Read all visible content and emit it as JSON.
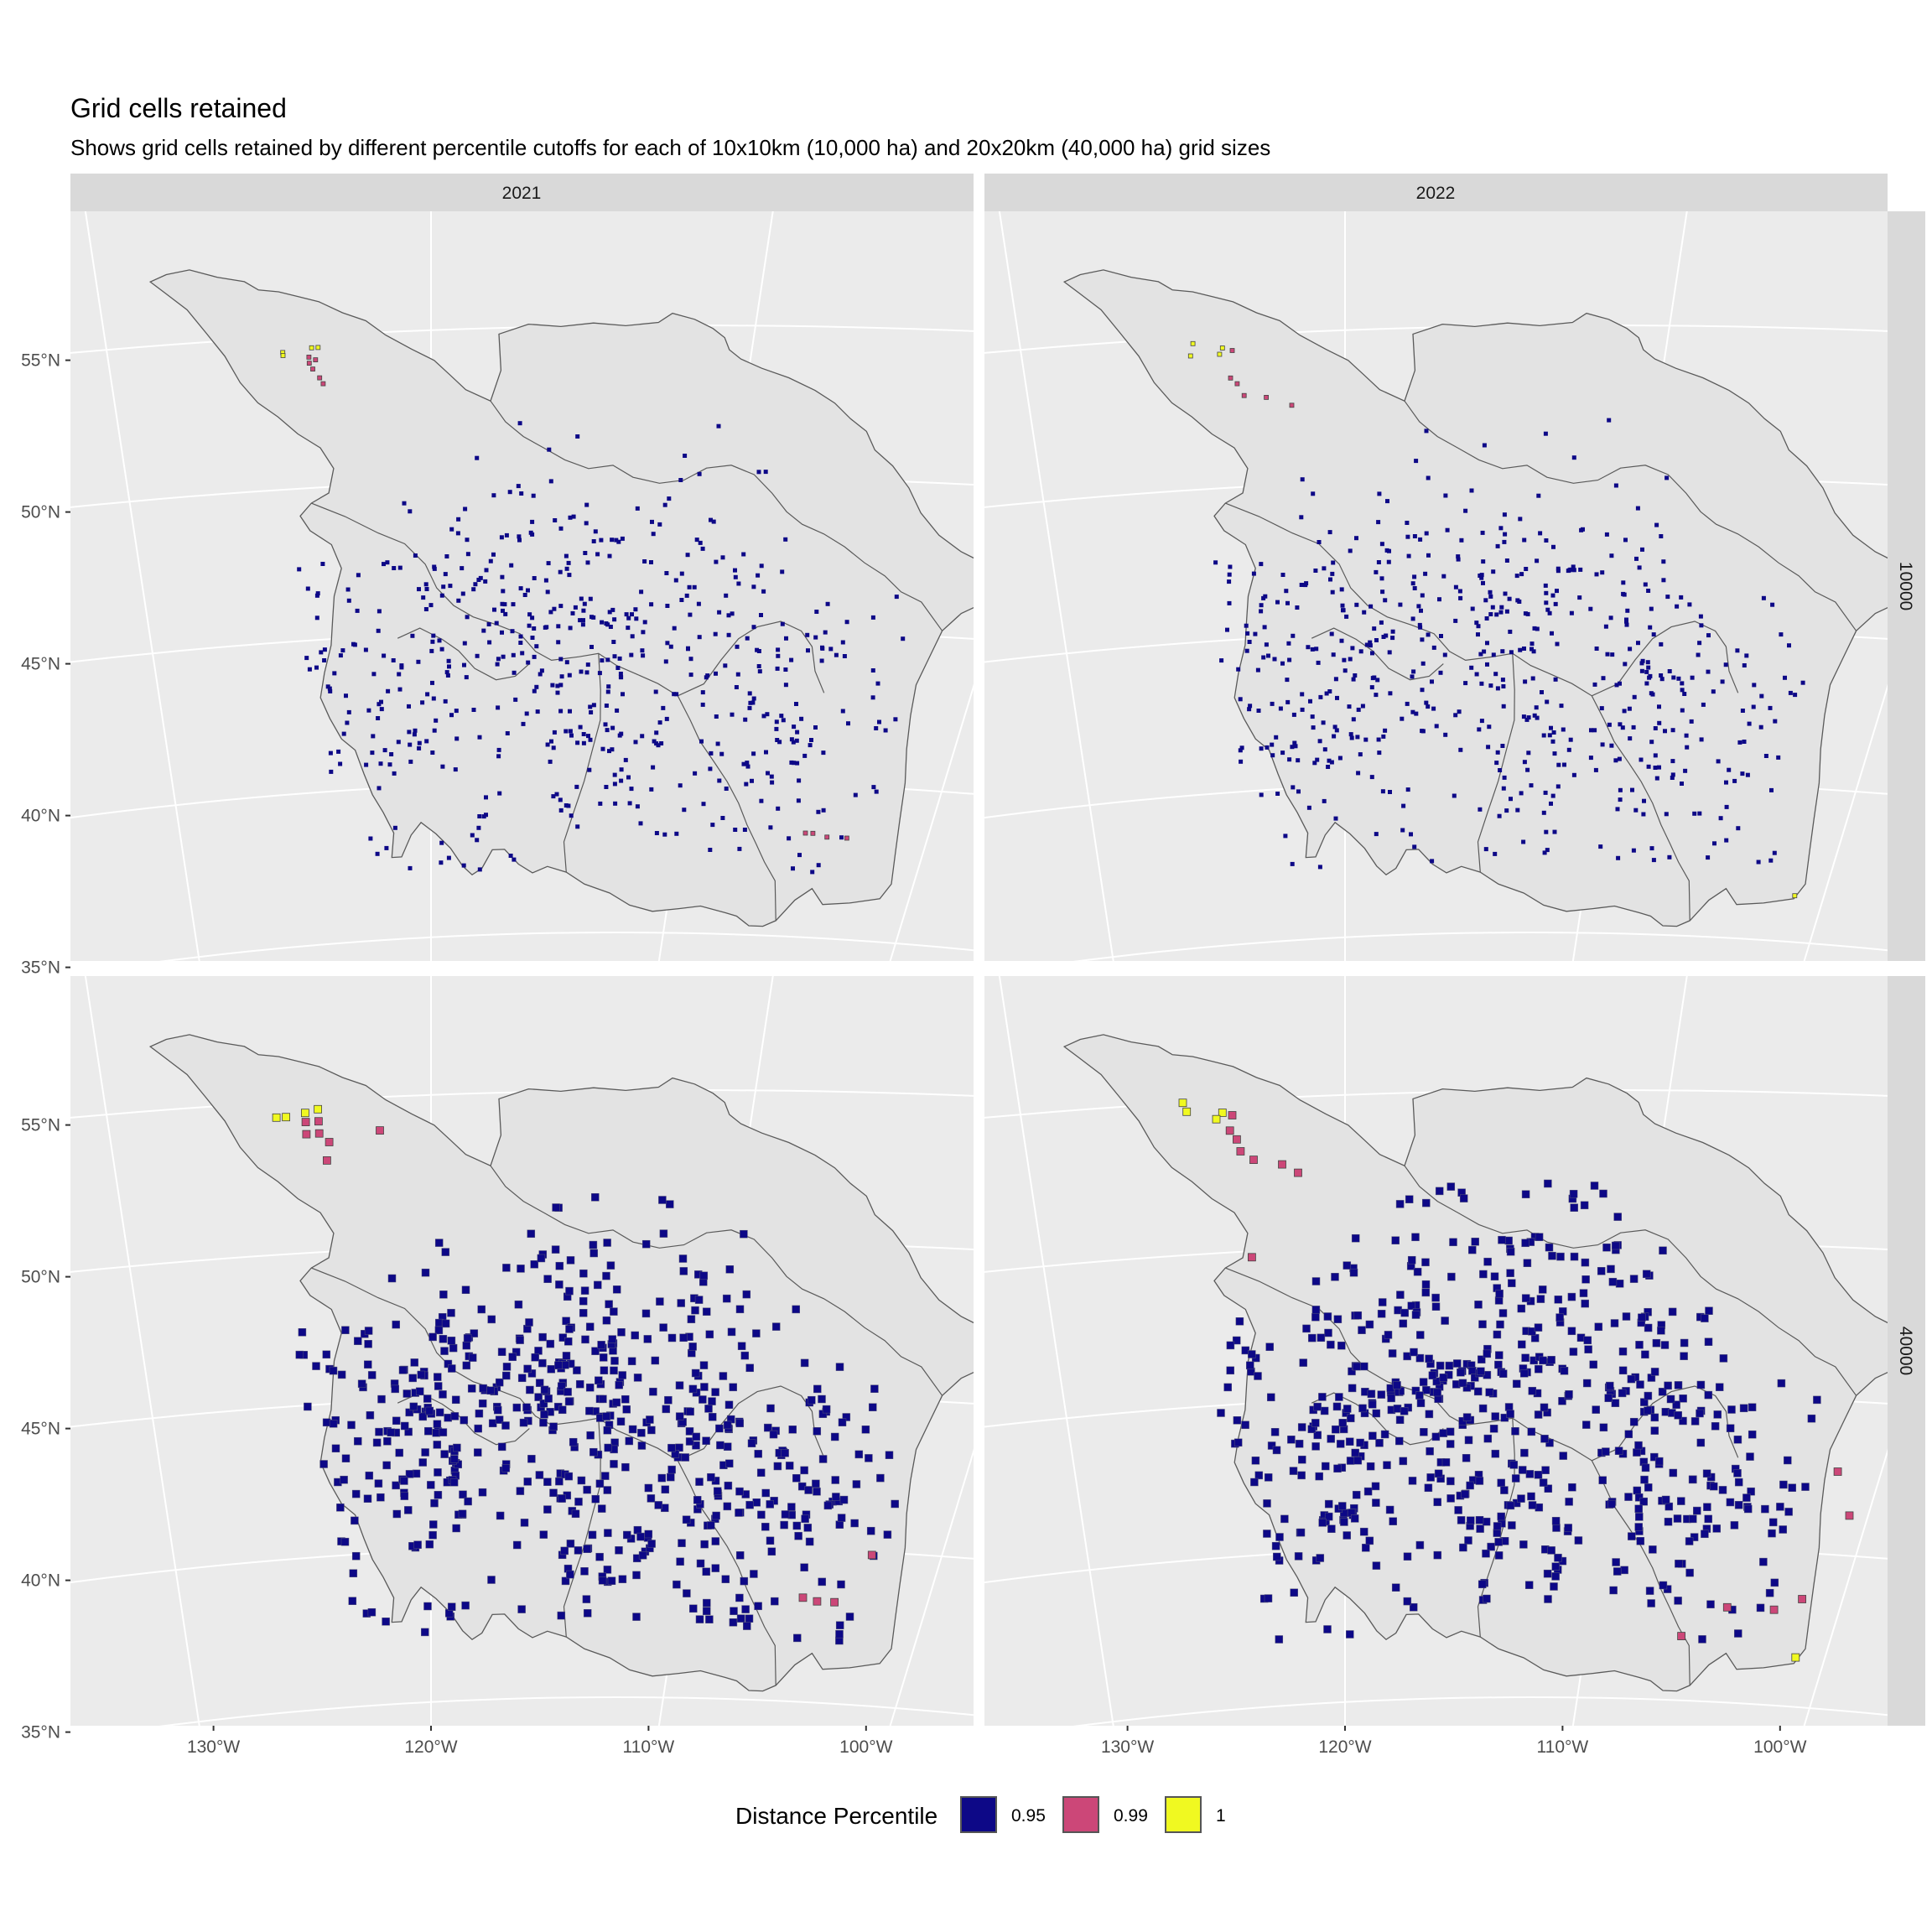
{
  "title": "Grid cells retained",
  "subtitle": "Shows grid cells retained by different percentile cutoffs for each of 10x10km (10,000 ha) and 20x20km (40,000 ha) grid sizes",
  "chart_data": {
    "type": "map",
    "columns": [
      "2021",
      "2022"
    ],
    "rows": [
      "10000",
      "40000"
    ],
    "lat_ticks": [
      "55°N",
      "50°N",
      "45°N",
      "40°N",
      "35°N"
    ],
    "lon_ticks": [
      "130°W",
      "120°W",
      "110°W",
      "100°W"
    ],
    "legend": {
      "title": "Distance Percentile",
      "items": [
        {
          "label": "0.95",
          "color": "#0d0887"
        },
        {
          "label": "0.99",
          "color": "#cc4778"
        },
        {
          "label": "1",
          "color": "#f0f921"
        }
      ]
    },
    "panels": [
      {
        "year": "2021",
        "grid": "10000",
        "cells": [
          {
            "lon": -124.6,
            "lat": 54.5,
            "pct": "1"
          },
          {
            "lon": -124.6,
            "lat": 54.4,
            "pct": "1"
          },
          {
            "lon": -123.7,
            "lat": 54.6,
            "pct": "1"
          },
          {
            "lon": -123.5,
            "lat": 54.6,
            "pct": "1"
          },
          {
            "lon": -123.8,
            "lat": 54.3,
            "pct": "0.99"
          },
          {
            "lon": -123.8,
            "lat": 54.1,
            "pct": "0.99"
          },
          {
            "lon": -123.6,
            "lat": 54.2,
            "pct": "0.99"
          },
          {
            "lon": -123.7,
            "lat": 53.9,
            "pct": "0.99"
          },
          {
            "lon": -123.5,
            "lat": 53.6,
            "pct": "0.99"
          },
          {
            "lon": -123.4,
            "lat": 53.4,
            "pct": "0.99"
          },
          {
            "lon": -104.9,
            "lat": 38.4,
            "pct": "0.99"
          },
          {
            "lon": -104.6,
            "lat": 38.4,
            "pct": "0.99"
          },
          {
            "lon": -104.0,
            "lat": 38.3,
            "pct": "0.99"
          },
          {
            "lon": -103.2,
            "lat": 38.3,
            "pct": "0.99"
          }
        ]
      },
      {
        "year": "2022",
        "grid": "10000",
        "cells": [
          {
            "lon": -124.7,
            "lat": 54.8,
            "pct": "1"
          },
          {
            "lon": -124.8,
            "lat": 54.4,
            "pct": "1"
          },
          {
            "lon": -123.8,
            "lat": 54.6,
            "pct": "1"
          },
          {
            "lon": -123.9,
            "lat": 54.4,
            "pct": "1"
          },
          {
            "lon": -101.2,
            "lat": 36.5,
            "pct": "1"
          },
          {
            "lon": -123.5,
            "lat": 54.5,
            "pct": "0.99"
          },
          {
            "lon": -123.6,
            "lat": 53.6,
            "pct": "0.99"
          },
          {
            "lon": -123.4,
            "lat": 53.4,
            "pct": "0.99"
          },
          {
            "lon": -123.2,
            "lat": 53.0,
            "pct": "0.99"
          },
          {
            "lon": -122.5,
            "lat": 52.9,
            "pct": "0.99"
          },
          {
            "lon": -121.7,
            "lat": 52.6,
            "pct": "0.99"
          }
        ]
      },
      {
        "year": "2021",
        "grid": "40000",
        "cells": [
          {
            "lon": -124.8,
            "lat": 54.5,
            "pct": "1"
          },
          {
            "lon": -124.5,
            "lat": 54.5,
            "pct": "1"
          },
          {
            "lon": -123.9,
            "lat": 54.6,
            "pct": "1"
          },
          {
            "lon": -123.5,
            "lat": 54.7,
            "pct": "1"
          },
          {
            "lon": -123.9,
            "lat": 54.3,
            "pct": "0.99"
          },
          {
            "lon": -123.5,
            "lat": 54.3,
            "pct": "0.99"
          },
          {
            "lon": -123.9,
            "lat": 53.9,
            "pct": "0.99"
          },
          {
            "lon": -123.5,
            "lat": 53.9,
            "pct": "0.99"
          },
          {
            "lon": -123.2,
            "lat": 53.6,
            "pct": "0.99"
          },
          {
            "lon": -123.3,
            "lat": 53.0,
            "pct": "0.99"
          },
          {
            "lon": -121.6,
            "lat": 53.9,
            "pct": "0.99"
          },
          {
            "lon": -105.0,
            "lat": 38.4,
            "pct": "0.99"
          },
          {
            "lon": -104.4,
            "lat": 38.3,
            "pct": "0.99"
          },
          {
            "lon": -103.7,
            "lat": 38.3,
            "pct": "0.99"
          },
          {
            "lon": -102.7,
            "lat": 39.9,
            "pct": "0.99"
          }
        ]
      },
      {
        "year": "2022",
        "grid": "40000",
        "cells": [
          {
            "lon": -125.0,
            "lat": 55.0,
            "pct": "1"
          },
          {
            "lon": -124.9,
            "lat": 54.7,
            "pct": "1"
          },
          {
            "lon": -123.8,
            "lat": 54.6,
            "pct": "1"
          },
          {
            "lon": -124.0,
            "lat": 54.4,
            "pct": "1"
          },
          {
            "lon": -101.2,
            "lat": 36.6,
            "pct": "1"
          },
          {
            "lon": -123.5,
            "lat": 54.5,
            "pct": "0.99"
          },
          {
            "lon": -123.6,
            "lat": 54.0,
            "pct": "0.99"
          },
          {
            "lon": -123.4,
            "lat": 53.7,
            "pct": "0.99"
          },
          {
            "lon": -123.3,
            "lat": 53.3,
            "pct": "0.99"
          },
          {
            "lon": -122.9,
            "lat": 53.0,
            "pct": "0.99"
          },
          {
            "lon": -122.0,
            "lat": 52.8,
            "pct": "0.99"
          },
          {
            "lon": -121.5,
            "lat": 52.5,
            "pct": "0.99"
          },
          {
            "lon": -123.1,
            "lat": 49.8,
            "pct": "0.99"
          },
          {
            "lon": -106.1,
            "lat": 37.1,
            "pct": "0.99"
          },
          {
            "lon": -104.5,
            "lat": 38.1,
            "pct": "0.99"
          },
          {
            "lon": -102.6,
            "lat": 38.1,
            "pct": "0.99"
          },
          {
            "lon": -101.6,
            "lat": 38.5,
            "pct": "0.99"
          },
          {
            "lon": -101.6,
            "lat": 42.7,
            "pct": "0.99"
          },
          {
            "lon": -100.7,
            "lat": 41.3,
            "pct": "0.99"
          }
        ]
      }
    ]
  }
}
